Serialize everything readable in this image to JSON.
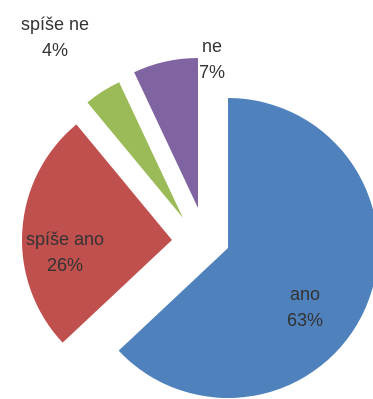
{
  "chart_data": {
    "type": "pie",
    "title": "",
    "slices": [
      {
        "label": "ano",
        "value": 63,
        "display": "63%",
        "color": "#4f81bd"
      },
      {
        "label": "spíše ano",
        "value": 26,
        "display": "26%",
        "color": "#c0504d"
      },
      {
        "label": "spíše ne",
        "value": 4,
        "display": "4%",
        "color": "#9bbb59"
      },
      {
        "label": "ne",
        "value": 7,
        "display": "7%",
        "color": "#8064a2"
      }
    ],
    "exploded": true,
    "legend": "none"
  }
}
